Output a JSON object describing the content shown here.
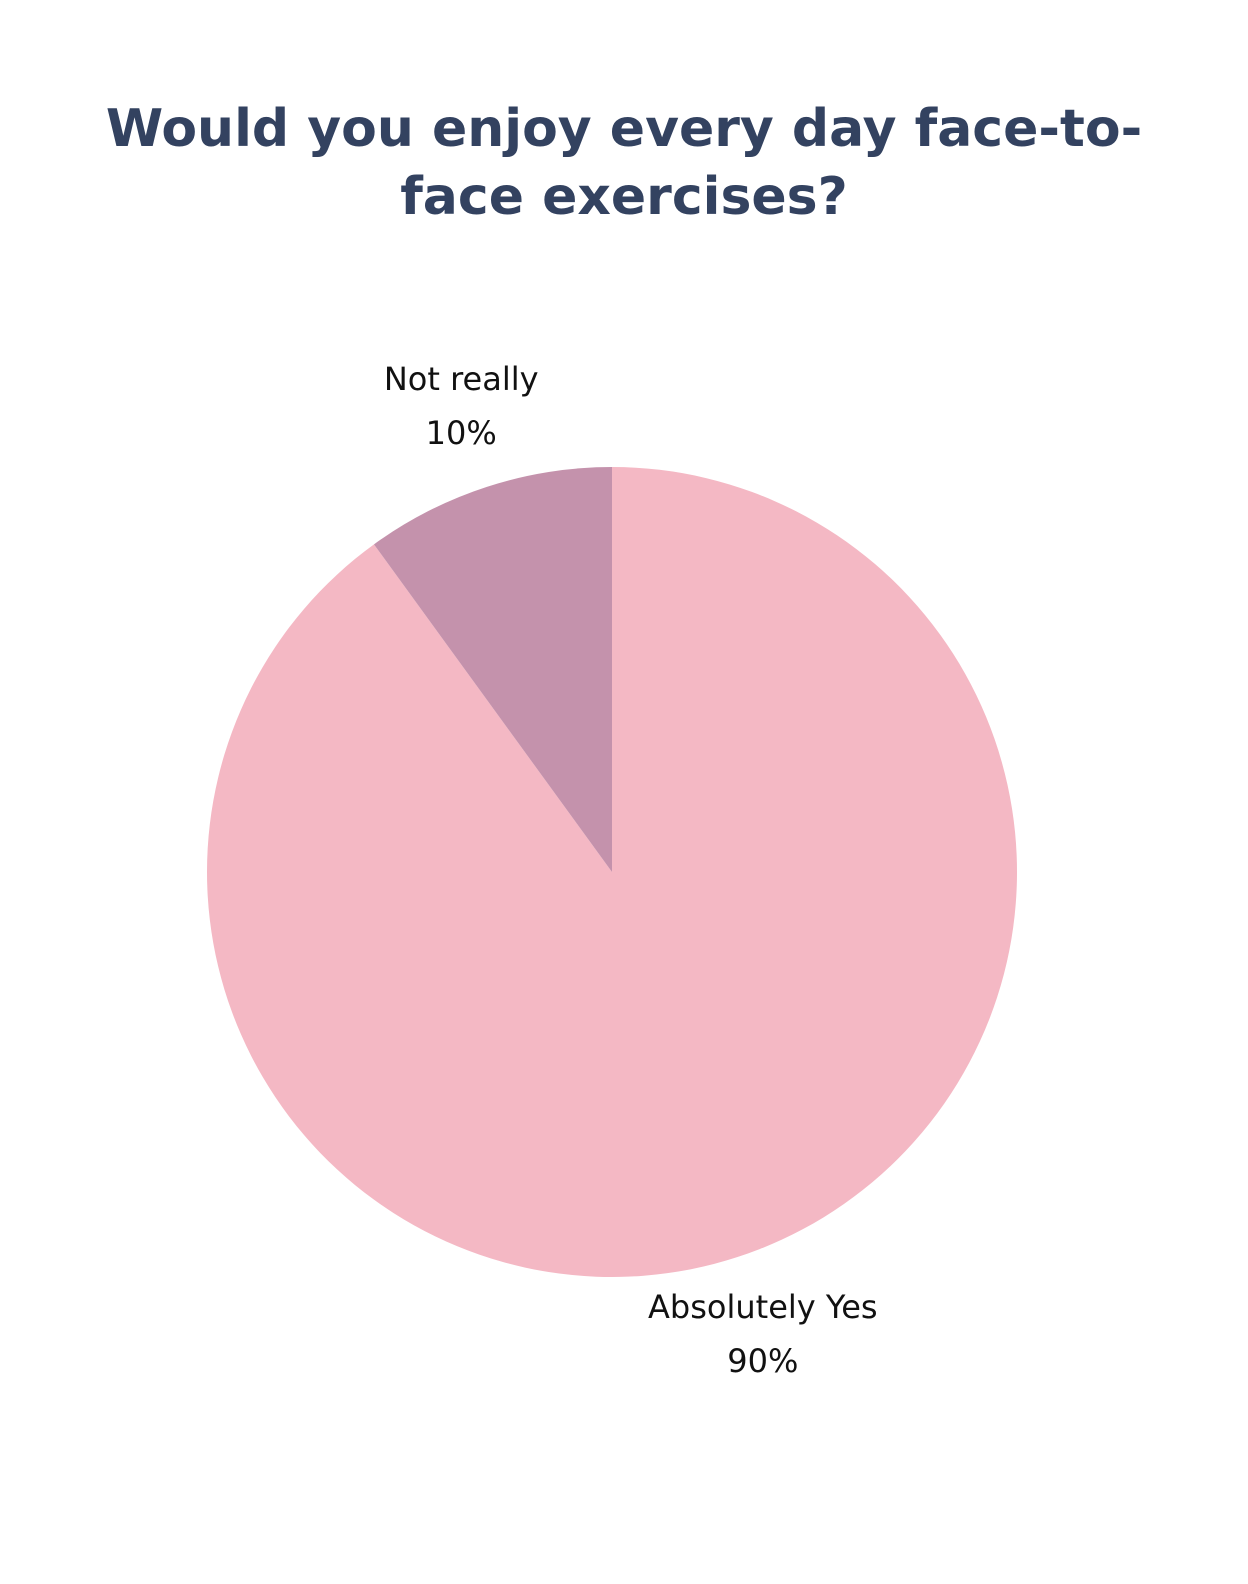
{
  "chart_data": {
    "type": "pie",
    "title": "Would you enjoy every day face-to-face exercises?",
    "categories": [
      "Absolutely Yes",
      "Not really"
    ],
    "values": [
      90,
      10
    ],
    "value_labels": [
      "90%",
      "10%"
    ],
    "colors": [
      "#f4b8c4",
      "#c492ac"
    ]
  }
}
